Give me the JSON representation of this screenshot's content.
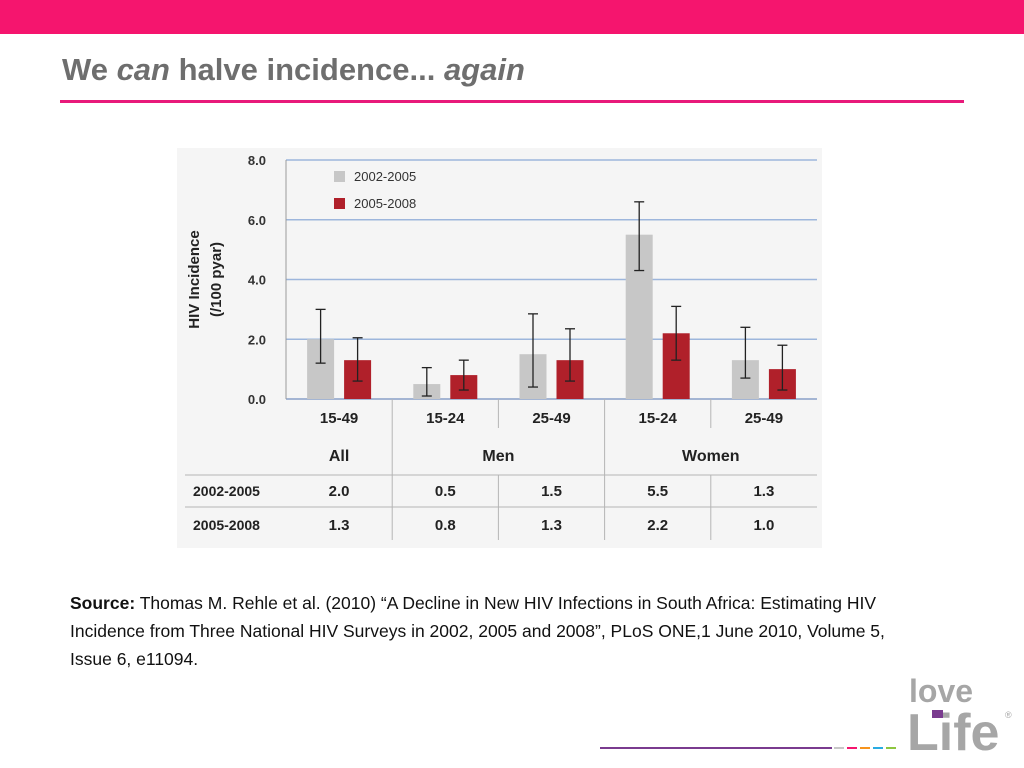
{
  "header": {
    "title_part1": "We ",
    "title_part2": "can",
    "title_part3": " halve incidence... ",
    "title_part4": "again"
  },
  "colors": {
    "accent": "#f5156e",
    "rule": "#e8197a",
    "series_a": "#c7c7c7",
    "series_b": "#b0202a",
    "grid": "#9db6dc"
  },
  "chart_data": {
    "type": "bar",
    "ylabel": "HIV Incidence (/100 pyar)",
    "ylabel_line1": "HIV Incidence",
    "ylabel_line2": "(/100 pyar)",
    "ylim": [
      0,
      8
    ],
    "yticks": [
      0,
      2,
      4,
      6,
      8
    ],
    "ytick_labels": [
      "0.0",
      "2.0",
      "4.0",
      "6.0",
      "8.0"
    ],
    "grid": true,
    "legend_position": "top-left",
    "categories": [
      "15-49",
      "15-24",
      "25-49",
      "15-24",
      "25-49"
    ],
    "groups": [
      {
        "label": "All",
        "span": 1
      },
      {
        "label": "Men",
        "span": 2
      },
      {
        "label": "Women",
        "span": 2
      }
    ],
    "series": [
      {
        "name": "2002-2005",
        "color": "#c7c7c7",
        "values": [
          2.0,
          0.5,
          1.5,
          5.5,
          1.3
        ],
        "error_low": [
          1.2,
          0.1,
          0.4,
          4.3,
          0.7
        ],
        "error_high": [
          3.0,
          1.05,
          2.85,
          6.6,
          2.4
        ]
      },
      {
        "name": "2005-2008",
        "color": "#b0202a",
        "values": [
          1.3,
          0.8,
          1.3,
          2.2,
          1.0
        ],
        "error_low": [
          0.6,
          0.3,
          0.6,
          1.3,
          0.3
        ],
        "error_high": [
          2.05,
          1.3,
          2.35,
          3.1,
          1.8
        ]
      }
    ],
    "table": {
      "rows": [
        {
          "label": "2002-2005",
          "cells": [
            "2.0",
            "0.5",
            "1.5",
            "5.5",
            "1.3"
          ]
        },
        {
          "label": "2005-2008",
          "cells": [
            "1.3",
            "0.8",
            "1.3",
            "2.2",
            "1.0"
          ]
        }
      ]
    }
  },
  "source": {
    "label": "Source:",
    "text": " Thomas M. Rehle et al. (2010) “A Decline in New HIV Infections in South Africa: Estimating HIV Incidence from Three National HIV Surveys in 2002, 2005 and 2008”, PLoS ONE,1 June 2010, Volume 5, Issue 6, e11094."
  },
  "logo": {
    "line1": "love",
    "line2": "Life",
    "mark": "®"
  },
  "footer_colors": [
    "#7a3b8f",
    "#c7c7c7",
    "#f5156e",
    "#f7941d",
    "#29abe2",
    "#8dc63f"
  ]
}
